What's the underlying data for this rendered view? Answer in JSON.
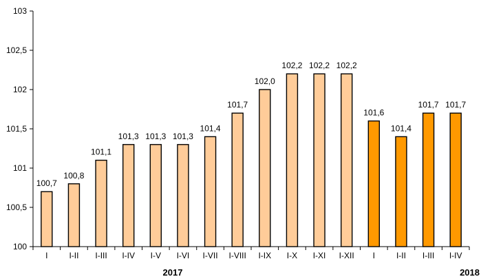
{
  "chart_data": {
    "type": "bar",
    "categories": [
      "I",
      "I-II",
      "I-III",
      "I-IV",
      "I-V",
      "I-VI",
      "I-VII",
      "I-VIII",
      "I-IX",
      "I-X",
      "I-XI",
      "I-XII",
      "I",
      "I-II",
      "I-III",
      "I-IV"
    ],
    "series": [
      {
        "values": [
          100.7,
          100.8,
          101.1,
          101.3,
          101.3,
          101.3,
          101.4,
          101.7,
          102.0,
          102.2,
          102.2,
          102.2,
          101.6,
          101.4,
          101.7,
          101.7
        ]
      }
    ],
    "data_labels": [
      "100,7",
      "100,8",
      "101,1",
      "101,3",
      "101,3",
      "101,3",
      "101,4",
      "101,7",
      "102,0",
      "102,2",
      "102,2",
      "102,2",
      "101,6",
      "101,4",
      "101,7",
      "101,7"
    ],
    "year_groups": [
      {
        "label": "2017",
        "count": 12,
        "color": "#FFCC99"
      },
      {
        "label": "2018",
        "count": 4,
        "color": "#FF9900"
      }
    ],
    "ylim": [
      100,
      103
    ],
    "yticks": [
      100,
      100.5,
      101,
      101.5,
      102,
      102.5,
      103
    ],
    "ytick_labels": [
      "100",
      "100,5",
      "101",
      "101,5",
      "102",
      "102,5",
      "103"
    ],
    "title": "",
    "xlabel": "",
    "ylabel": "",
    "grid": false,
    "legend": "none"
  }
}
